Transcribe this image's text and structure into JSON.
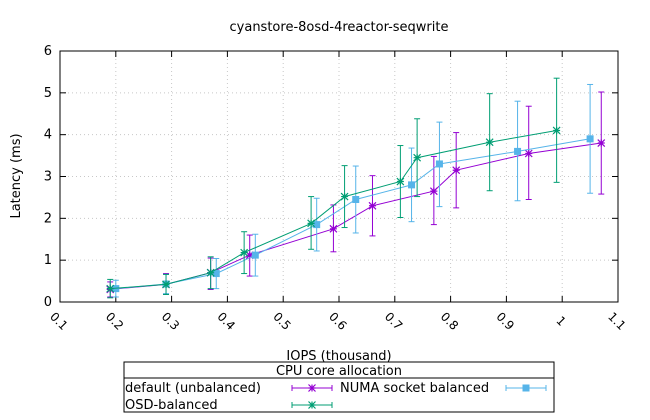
{
  "chart_data": {
    "type": "line",
    "title": "cyanstore-8osd-4reactor-seqwrite",
    "xlabel": "IOPS (thousand)",
    "ylabel": "Latency (ms)",
    "xlim": [
      0.1,
      1.1
    ],
    "ylim": [
      0,
      6
    ],
    "x_ticks": [
      "0.1",
      "0.2",
      "0.3",
      "0.4",
      "0.5",
      "0.6",
      "0.7",
      "0.8",
      "0.9",
      "1",
      "1.1"
    ],
    "y_ticks": [
      "0",
      "1",
      "2",
      "3",
      "4",
      "5",
      "6"
    ],
    "grid": true,
    "legend": {
      "title": "CPU core allocation",
      "placement": "below"
    },
    "series": [
      {
        "name": "default (unbalanced)",
        "color": "#9400d3",
        "marker": "star",
        "points": [
          {
            "x": 0.19,
            "y": 0.3,
            "lo": 0.12,
            "hi": 0.48
          },
          {
            "x": 0.29,
            "y": 0.42,
            "lo": 0.18,
            "hi": 0.68
          },
          {
            "x": 0.37,
            "y": 0.7,
            "lo": 0.3,
            "hi": 1.05
          },
          {
            "x": 0.44,
            "y": 1.12,
            "lo": 0.62,
            "hi": 1.6
          },
          {
            "x": 0.59,
            "y": 1.75,
            "lo": 1.2,
            "hi": 2.32
          },
          {
            "x": 0.66,
            "y": 2.3,
            "lo": 1.58,
            "hi": 3.02
          },
          {
            "x": 0.77,
            "y": 2.65,
            "lo": 1.85,
            "hi": 3.48
          },
          {
            "x": 0.81,
            "y": 3.15,
            "lo": 2.25,
            "hi": 4.05
          },
          {
            "x": 0.94,
            "y": 3.55,
            "lo": 2.45,
            "hi": 4.68
          },
          {
            "x": 1.07,
            "y": 3.8,
            "lo": 2.58,
            "hi": 5.02
          }
        ]
      },
      {
        "name": "NUMA socket balanced",
        "color": "#56b4e9",
        "marker": "square",
        "points": [
          {
            "x": 0.2,
            "y": 0.32,
            "lo": 0.12,
            "hi": 0.52
          },
          {
            "x": 0.29,
            "y": 0.43,
            "lo": 0.2,
            "hi": 0.66
          },
          {
            "x": 0.38,
            "y": 0.68,
            "lo": 0.32,
            "hi": 1.04
          },
          {
            "x": 0.45,
            "y": 1.12,
            "lo": 0.62,
            "hi": 1.62
          },
          {
            "x": 0.56,
            "y": 1.85,
            "lo": 1.22,
            "hi": 2.48
          },
          {
            "x": 0.63,
            "y": 2.45,
            "lo": 1.65,
            "hi": 3.25
          },
          {
            "x": 0.73,
            "y": 2.8,
            "lo": 1.92,
            "hi": 3.68
          },
          {
            "x": 0.78,
            "y": 3.3,
            "lo": 2.28,
            "hi": 4.3
          },
          {
            "x": 0.92,
            "y": 3.6,
            "lo": 2.42,
            "hi": 4.8
          },
          {
            "x": 1.05,
            "y": 3.9,
            "lo": 2.6,
            "hi": 5.2
          }
        ]
      },
      {
        "name": "OSD-balanced",
        "color": "#009e73",
        "marker": "star",
        "points": [
          {
            "x": 0.19,
            "y": 0.32,
            "lo": 0.1,
            "hi": 0.54
          },
          {
            "x": 0.29,
            "y": 0.42,
            "lo": 0.18,
            "hi": 0.66
          },
          {
            "x": 0.37,
            "y": 0.7,
            "lo": 0.32,
            "hi": 1.08
          },
          {
            "x": 0.43,
            "y": 1.18,
            "lo": 0.68,
            "hi": 1.68
          },
          {
            "x": 0.55,
            "y": 1.88,
            "lo": 1.26,
            "hi": 2.52
          },
          {
            "x": 0.61,
            "y": 2.52,
            "lo": 1.78,
            "hi": 3.26
          },
          {
            "x": 0.71,
            "y": 2.88,
            "lo": 2.02,
            "hi": 3.74
          },
          {
            "x": 0.74,
            "y": 3.45,
            "lo": 2.52,
            "hi": 4.38
          },
          {
            "x": 0.87,
            "y": 3.82,
            "lo": 2.66,
            "hi": 4.98
          },
          {
            "x": 0.99,
            "y": 4.1,
            "lo": 2.86,
            "hi": 5.35
          }
        ]
      }
    ]
  }
}
